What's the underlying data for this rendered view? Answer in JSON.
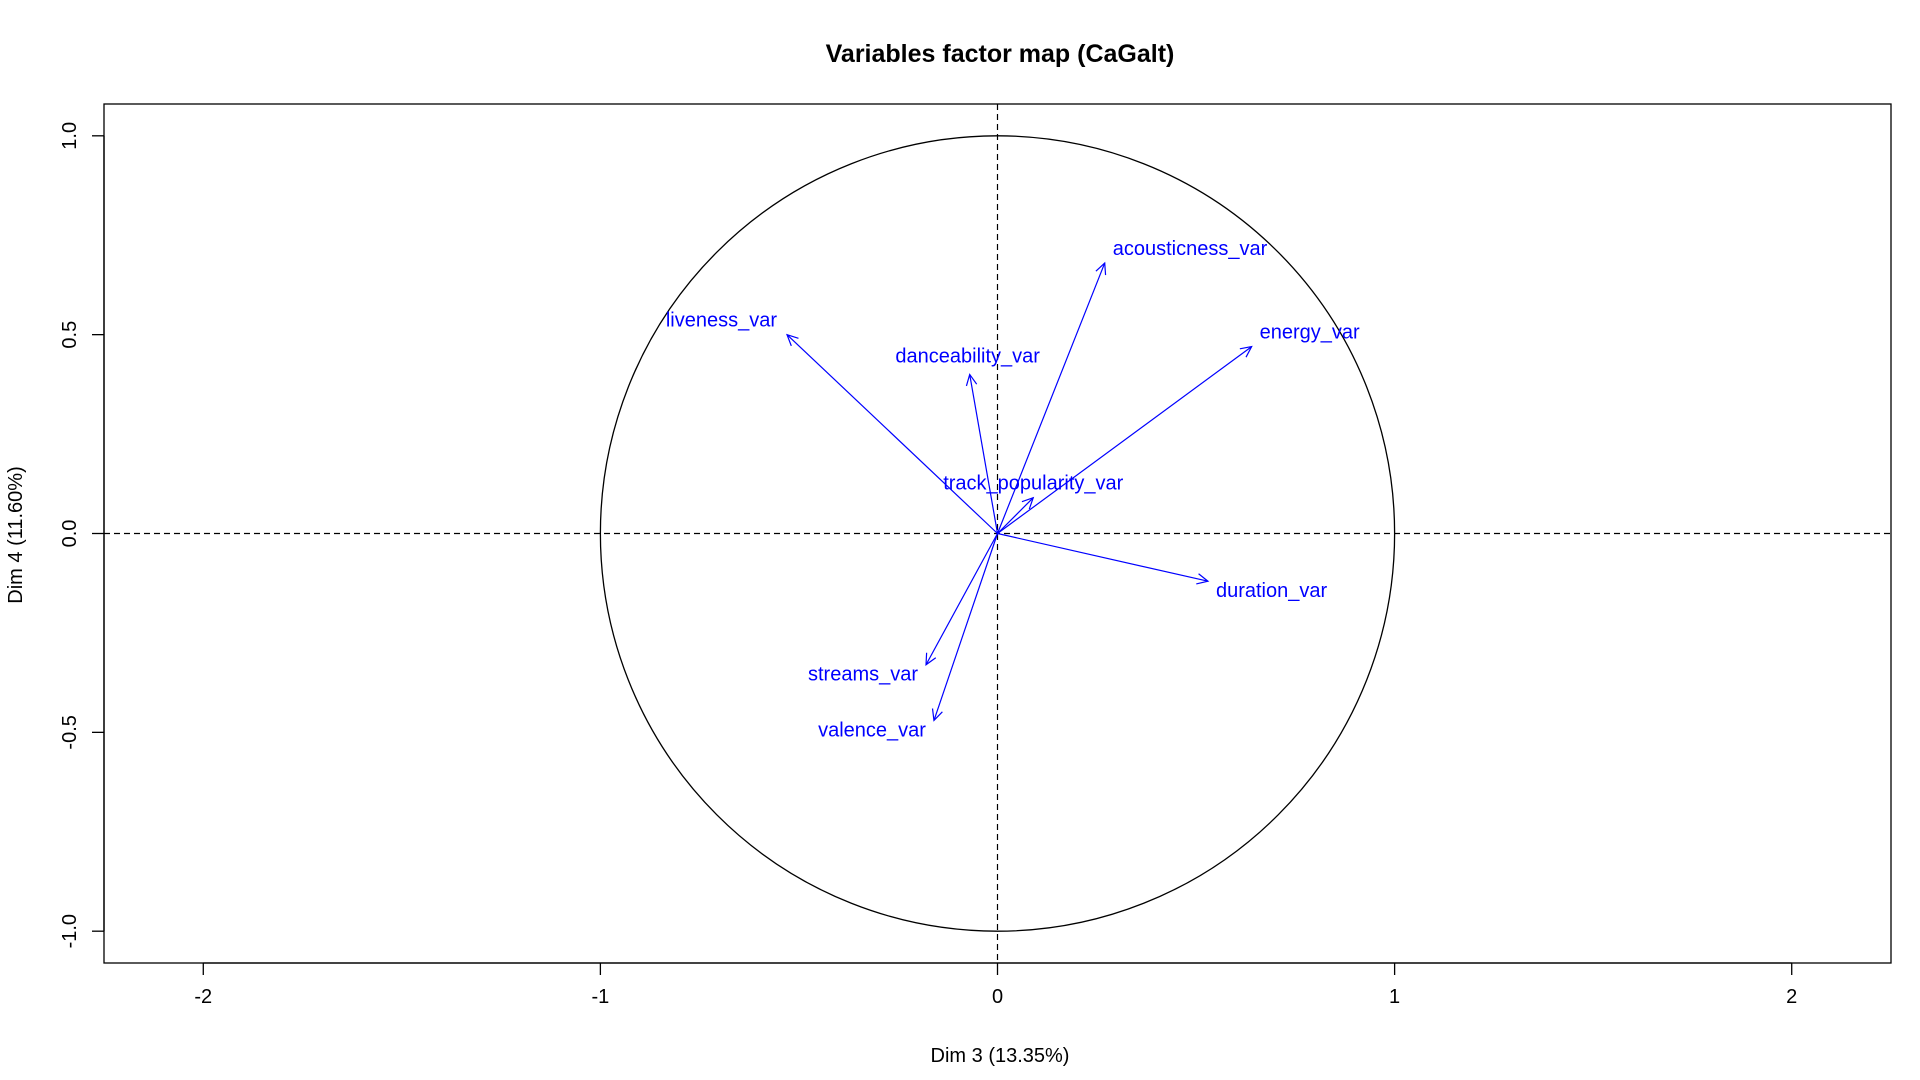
{
  "chart_data": {
    "type": "scatter",
    "title": "Variables factor map (CaGalt)",
    "xlabel": "Dim 3 (13.35%)",
    "ylabel": "Dim 4 (11.60%)",
    "xlim": [
      -2.25,
      2.25
    ],
    "ylim": [
      -1.08,
      1.08
    ],
    "x_ticks": [
      -2,
      -1,
      0,
      1,
      2
    ],
    "x_tick_labels": [
      "-2",
      "-1",
      "0",
      "1",
      "2"
    ],
    "y_ticks": [
      -1.0,
      -0.5,
      0.0,
      0.5,
      1.0
    ],
    "y_tick_labels": [
      "-1.0",
      "-0.5",
      "0.0",
      "0.5",
      "1.0"
    ],
    "unit_circle": true,
    "reference_lines": {
      "x": 0,
      "y": 0,
      "style": "dashed"
    },
    "grid": false,
    "arrow_color": "#0000ff",
    "circle_color": "#000000",
    "points": [
      {
        "label": "acousticness_var",
        "x": 0.27,
        "y": 0.68
      },
      {
        "label": "energy_var",
        "x": 0.64,
        "y": 0.47
      },
      {
        "label": "liveness_var",
        "x": -0.53,
        "y": 0.5
      },
      {
        "label": "danceability_var",
        "x": -0.07,
        "y": 0.4
      },
      {
        "label": "track_popularity_var",
        "x": 0.09,
        "y": 0.09
      },
      {
        "label": "duration_var",
        "x": 0.53,
        "y": -0.12
      },
      {
        "label": "streams_var",
        "x": -0.18,
        "y": -0.33
      },
      {
        "label": "valence_var",
        "x": -0.16,
        "y": -0.47
      }
    ]
  }
}
